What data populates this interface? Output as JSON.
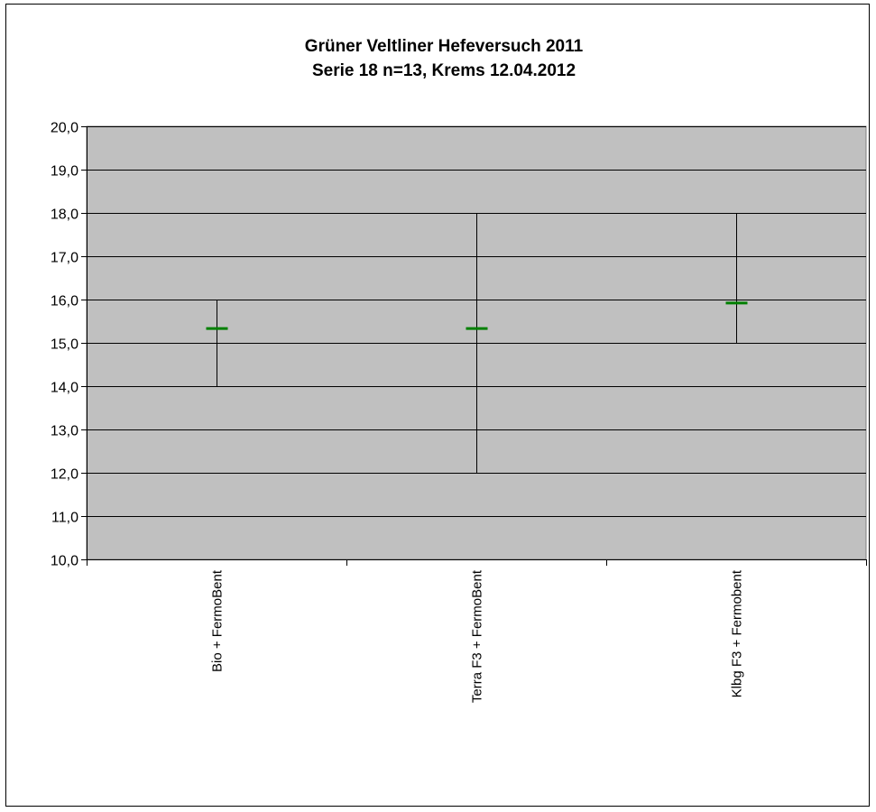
{
  "chart_data": {
    "type": "stock",
    "title": "Grüner  Veltliner  Hefeversuch  2011",
    "subtitle": "Serie 18 n=13, Krems 12.04.2012",
    "categories": [
      "Bio + FermoBent",
      "Terra F3 + FermoBent",
      "Klbg F3 + Fermobent"
    ],
    "series": [
      {
        "high": 16.0,
        "low": 14.0,
        "mean": 15.33
      },
      {
        "high": 18.0,
        "low": 12.0,
        "mean": 15.33
      },
      {
        "high": 18.0,
        "low": 15.0,
        "mean": 15.92
      }
    ],
    "ylim": [
      10,
      20
    ],
    "ytick_step": 1,
    "yticks": [
      "10,0",
      "11,0",
      "12,0",
      "13,0",
      "14,0",
      "15,0",
      "16,0",
      "17,0",
      "18,0",
      "19,0",
      "20,0"
    ],
    "grid": true,
    "colors": {
      "plot_background": "#c0c0c0",
      "mean_marker": "#008000",
      "range_line": "#000000",
      "gridline": "#000000"
    }
  }
}
